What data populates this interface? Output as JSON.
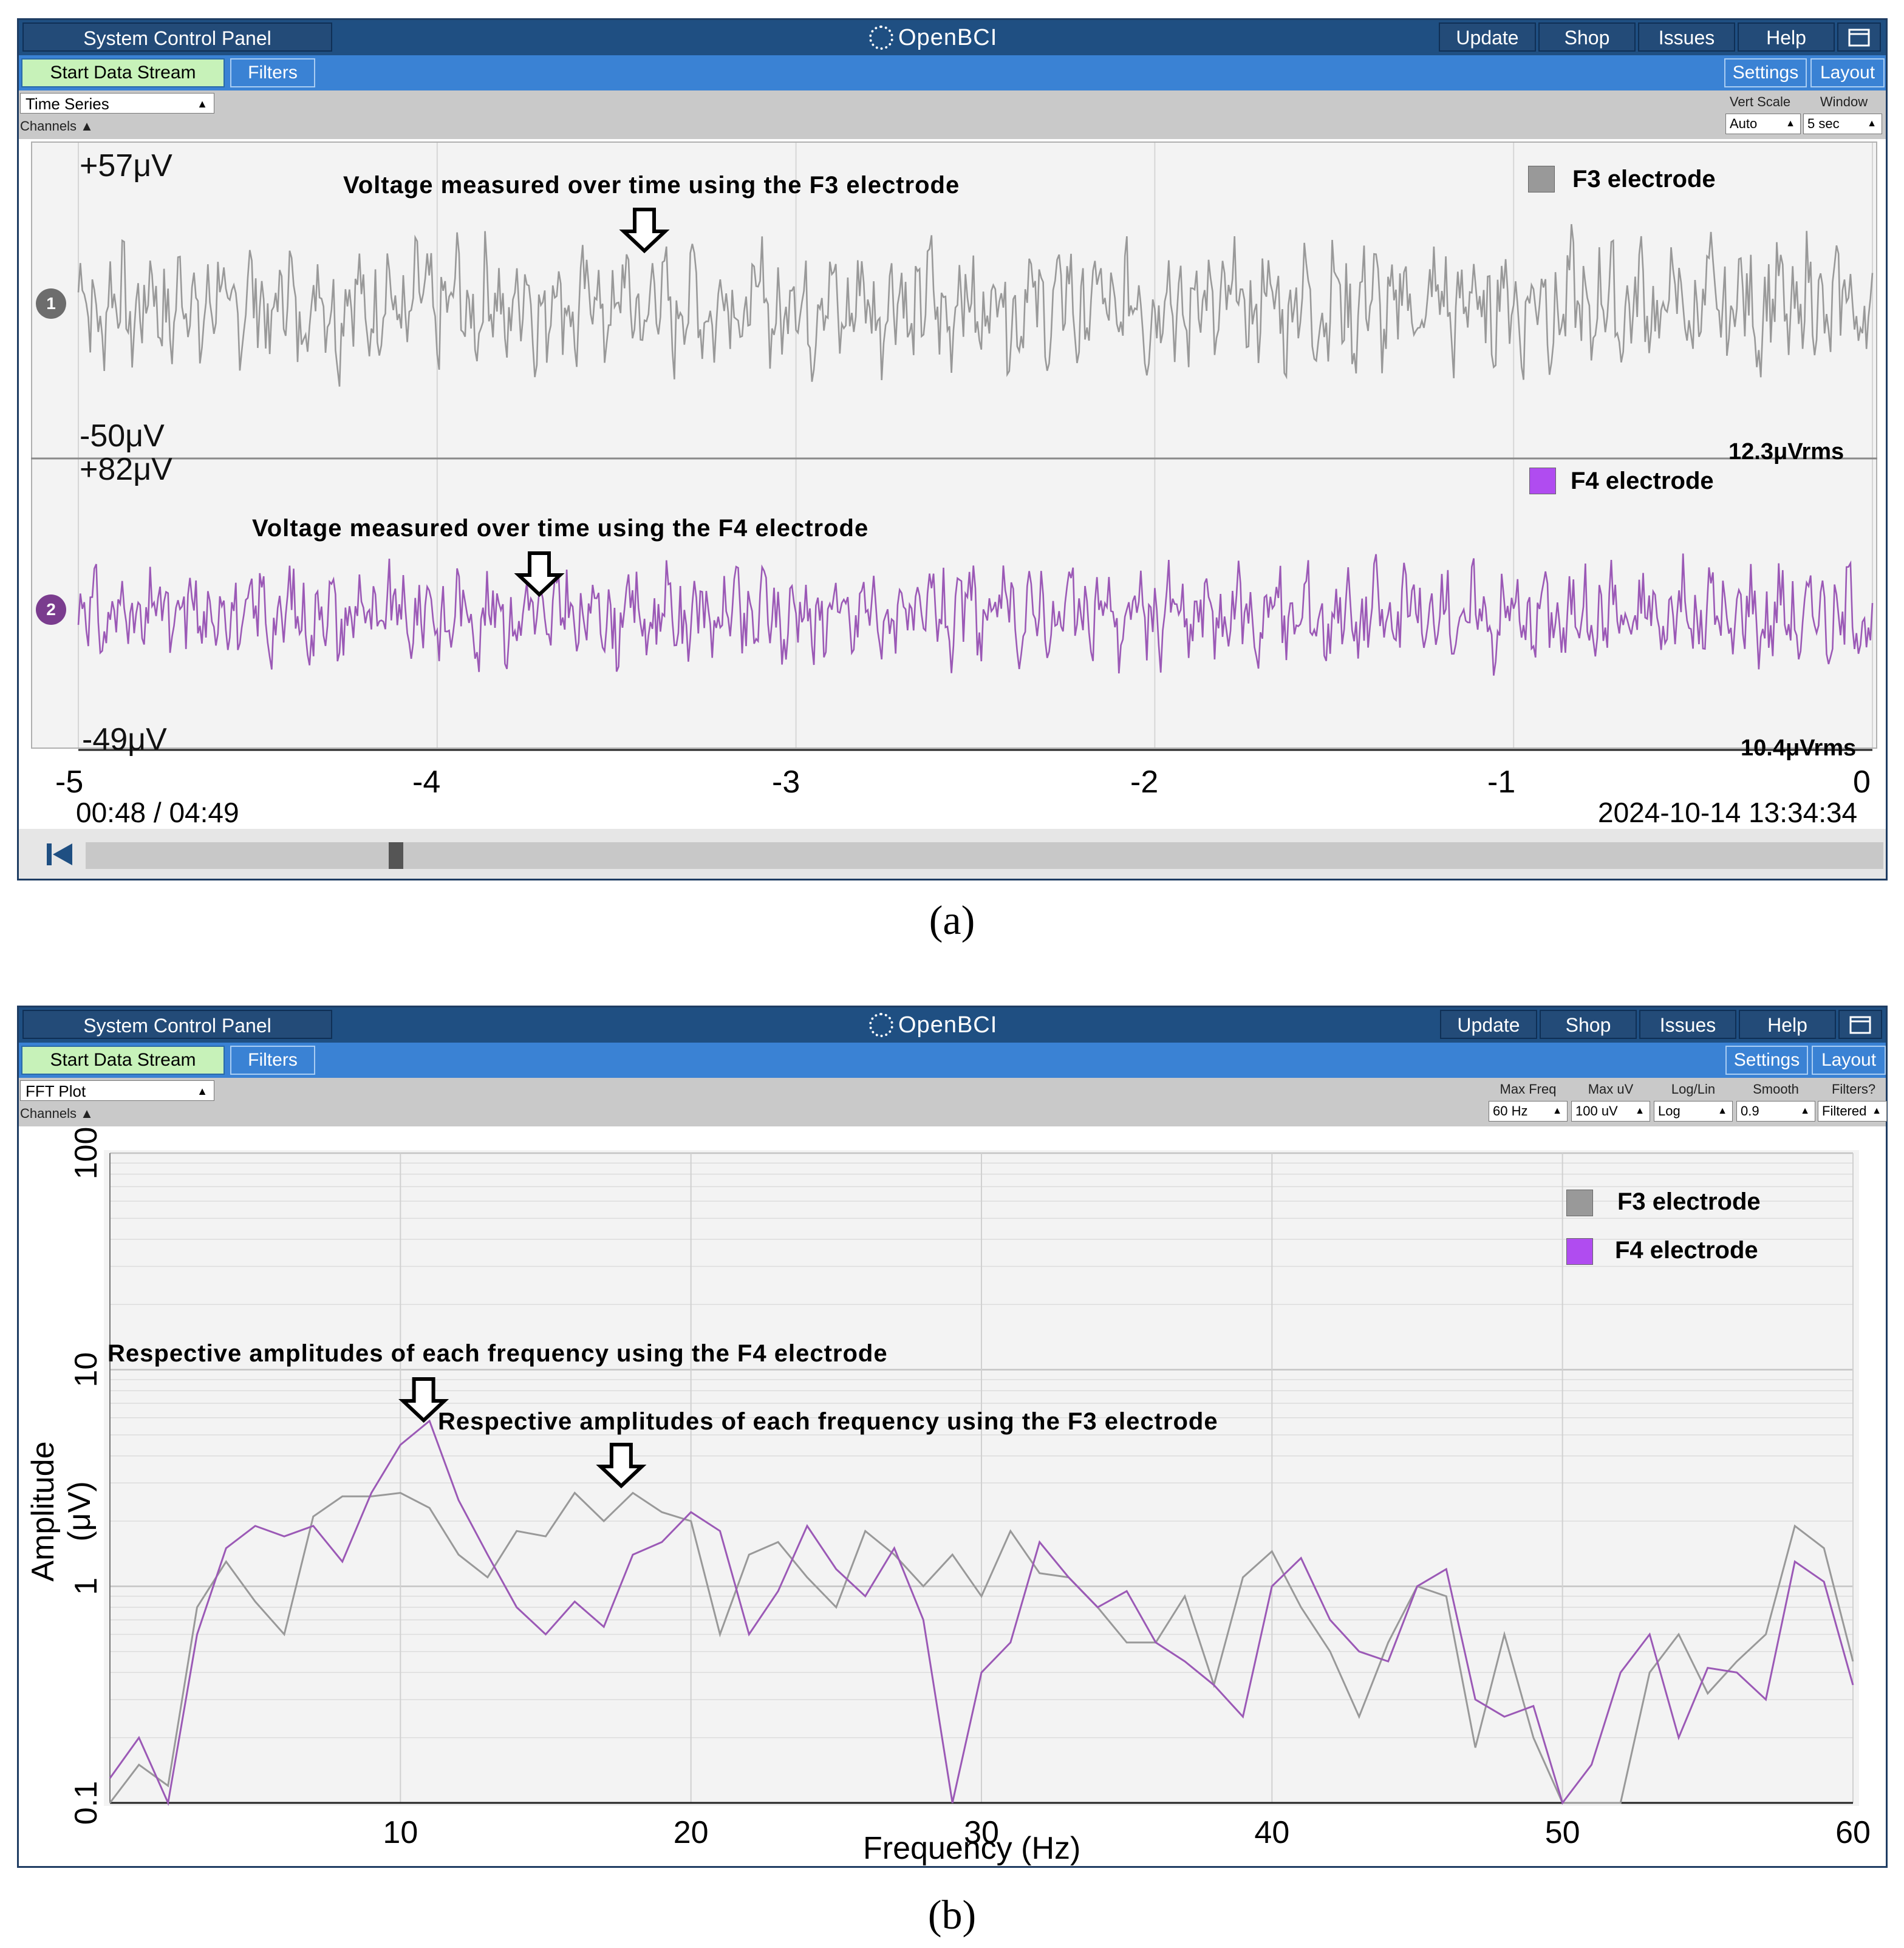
{
  "common": {
    "system_control_panel": "System Control Panel",
    "brand": "OpenBCI",
    "update": "Update",
    "shop": "Shop",
    "issues": "Issues",
    "help": "Help",
    "start_data_stream": "Start Data Stream",
    "filters": "Filters",
    "settings": "Settings",
    "layout": "Layout",
    "channels": "Channels ▲",
    "colors": {
      "f3": "#999999",
      "f4": "#9b59b6",
      "f4_swatch": "#b04cf0"
    }
  },
  "panel_a": {
    "widget": "Time Series",
    "controls": [
      {
        "label": "Vert Scale",
        "value": "Auto"
      },
      {
        "label": "Window",
        "value": "5 sec"
      }
    ],
    "channels": [
      {
        "num": "1",
        "ymax": "+57μV",
        "ymin": "-50μV",
        "rms": "12.3μVrms",
        "legend": "F3 electrode",
        "annotation": "Voltage measured over time using the F3 electrode"
      },
      {
        "num": "2",
        "ymax": "+82μV",
        "ymin": "-49μV",
        "rms": "10.4μVrms",
        "legend": "F4 electrode",
        "annotation": "Voltage measured over time using the F4 electrode"
      }
    ],
    "x_ticks": [
      "-5",
      "-4",
      "-3",
      "-2",
      "-1",
      "0"
    ],
    "playback_time": "00:48 / 04:49",
    "timestamp": "2024-10-14 13:34:34",
    "playback_progress": 0.17,
    "caption": "(a)"
  },
  "panel_b": {
    "widget": "FFT Plot",
    "controls": [
      {
        "label": "Max Freq",
        "value": "60 Hz"
      },
      {
        "label": "Max uV",
        "value": "100 uV"
      },
      {
        "label": "Log/Lin",
        "value": "Log"
      },
      {
        "label": "Smooth",
        "value": "0.9"
      },
      {
        "label": "Filters?",
        "value": "Filtered"
      }
    ],
    "annotation_f4": "Respective amplitudes of each frequency using the F4 electrode",
    "annotation_f3": "Respective amplitudes of each frequency using the F3 electrode",
    "caption": "(b)"
  },
  "chart_data": {
    "type": "line",
    "xlabel": "Frequency (Hz)",
    "ylabel": "Amplitude (μV)",
    "xlim": [
      0,
      60
    ],
    "ylim": [
      0.1,
      100
    ],
    "yscale": "log",
    "x_ticks": [
      "10",
      "20",
      "30",
      "40",
      "50",
      "60"
    ],
    "y_ticks": [
      "0.1",
      "1",
      "10",
      "100"
    ],
    "legend": "top-right",
    "grid": true,
    "x": [
      0,
      1,
      2,
      3,
      4,
      5,
      6,
      7,
      8,
      9,
      10,
      11,
      12,
      13,
      14,
      15,
      16,
      17,
      18,
      19,
      20,
      21,
      22,
      23,
      24,
      25,
      26,
      27,
      28,
      29,
      30,
      31,
      32,
      33,
      34,
      35,
      36,
      37,
      38,
      39,
      40,
      41,
      42,
      43,
      44,
      45,
      46,
      47,
      48,
      49,
      50,
      51,
      52,
      53,
      54,
      55,
      56,
      57,
      58,
      59,
      60
    ],
    "series": [
      {
        "name": "F3 electrode",
        "values": [
          0.1,
          0.15,
          0.12,
          0.8,
          1.3,
          0.85,
          0.6,
          2.1,
          2.6,
          2.6,
          2.7,
          2.3,
          1.4,
          1.1,
          1.8,
          1.7,
          2.7,
          2.0,
          2.7,
          2.2,
          2.0,
          0.6,
          1.4,
          1.6,
          1.1,
          0.8,
          1.8,
          1.4,
          1.0,
          1.4,
          0.9,
          1.8,
          1.15,
          1.1,
          0.8,
          0.55,
          0.55,
          0.9,
          0.35,
          1.1,
          1.45,
          0.8,
          0.5,
          0.25,
          0.55,
          1.0,
          0.9,
          0.18,
          0.6,
          0.2,
          0.1,
          0.1,
          0.1,
          0.4,
          0.6,
          0.32,
          0.45,
          0.6,
          1.9,
          1.5,
          0.45
        ]
      },
      {
        "name": "F4 electrode",
        "values": [
          0.13,
          0.2,
          0.1,
          0.6,
          1.5,
          1.9,
          1.7,
          1.9,
          1.3,
          2.7,
          4.5,
          5.8,
          2.5,
          1.4,
          0.8,
          0.6,
          0.85,
          0.65,
          1.4,
          1.6,
          2.2,
          1.8,
          0.6,
          0.95,
          1.9,
          1.2,
          0.9,
          1.5,
          0.7,
          0.1,
          0.4,
          0.55,
          1.6,
          1.1,
          0.8,
          0.95,
          0.55,
          0.45,
          0.35,
          0.25,
          1.0,
          1.35,
          0.7,
          0.5,
          0.45,
          1.0,
          1.2,
          0.3,
          0.25,
          0.28,
          0.1,
          0.15,
          0.4,
          0.6,
          0.2,
          0.42,
          0.4,
          0.3,
          1.3,
          1.05,
          0.35
        ]
      }
    ]
  }
}
